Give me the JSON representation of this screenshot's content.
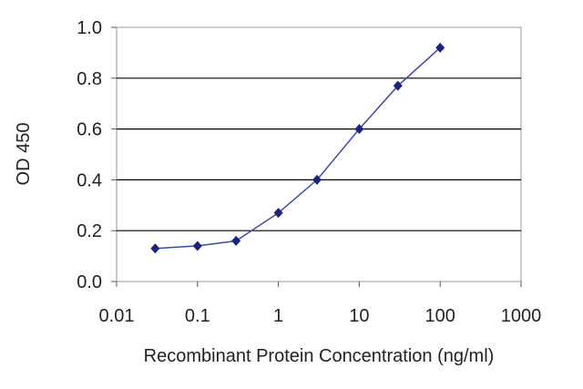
{
  "chart_data": {
    "type": "line",
    "title": "",
    "xlabel": "Recombinant Protein Concentration (ng/ml)",
    "ylabel": "OD 450",
    "x_scale": "log",
    "xlim": [
      0.01,
      1000
    ],
    "ylim": [
      0.0,
      1.0
    ],
    "x_ticks": [
      0.01,
      0.1,
      1,
      10,
      100,
      1000
    ],
    "x_tick_labels": [
      "0.01",
      "0.1",
      "1",
      "10",
      "100",
      "1000"
    ],
    "y_ticks": [
      0.0,
      0.2,
      0.4,
      0.6,
      0.8,
      1.0
    ],
    "y_tick_labels": [
      "0.0",
      "0.2",
      "0.4",
      "0.6",
      "0.8",
      "1.0"
    ],
    "grid": "horizontal",
    "series": [
      {
        "x": [
          0.03,
          0.1,
          0.3,
          1,
          3,
          10,
          30,
          100
        ],
        "y": [
          0.13,
          0.14,
          0.16,
          0.27,
          0.4,
          0.6,
          0.77,
          0.92
        ],
        "marker": "diamond"
      }
    ],
    "colors": {
      "line": "#3a4aa8",
      "marker": "#1a237e",
      "grid": "#000000",
      "frame": "#9a9a9a"
    }
  }
}
